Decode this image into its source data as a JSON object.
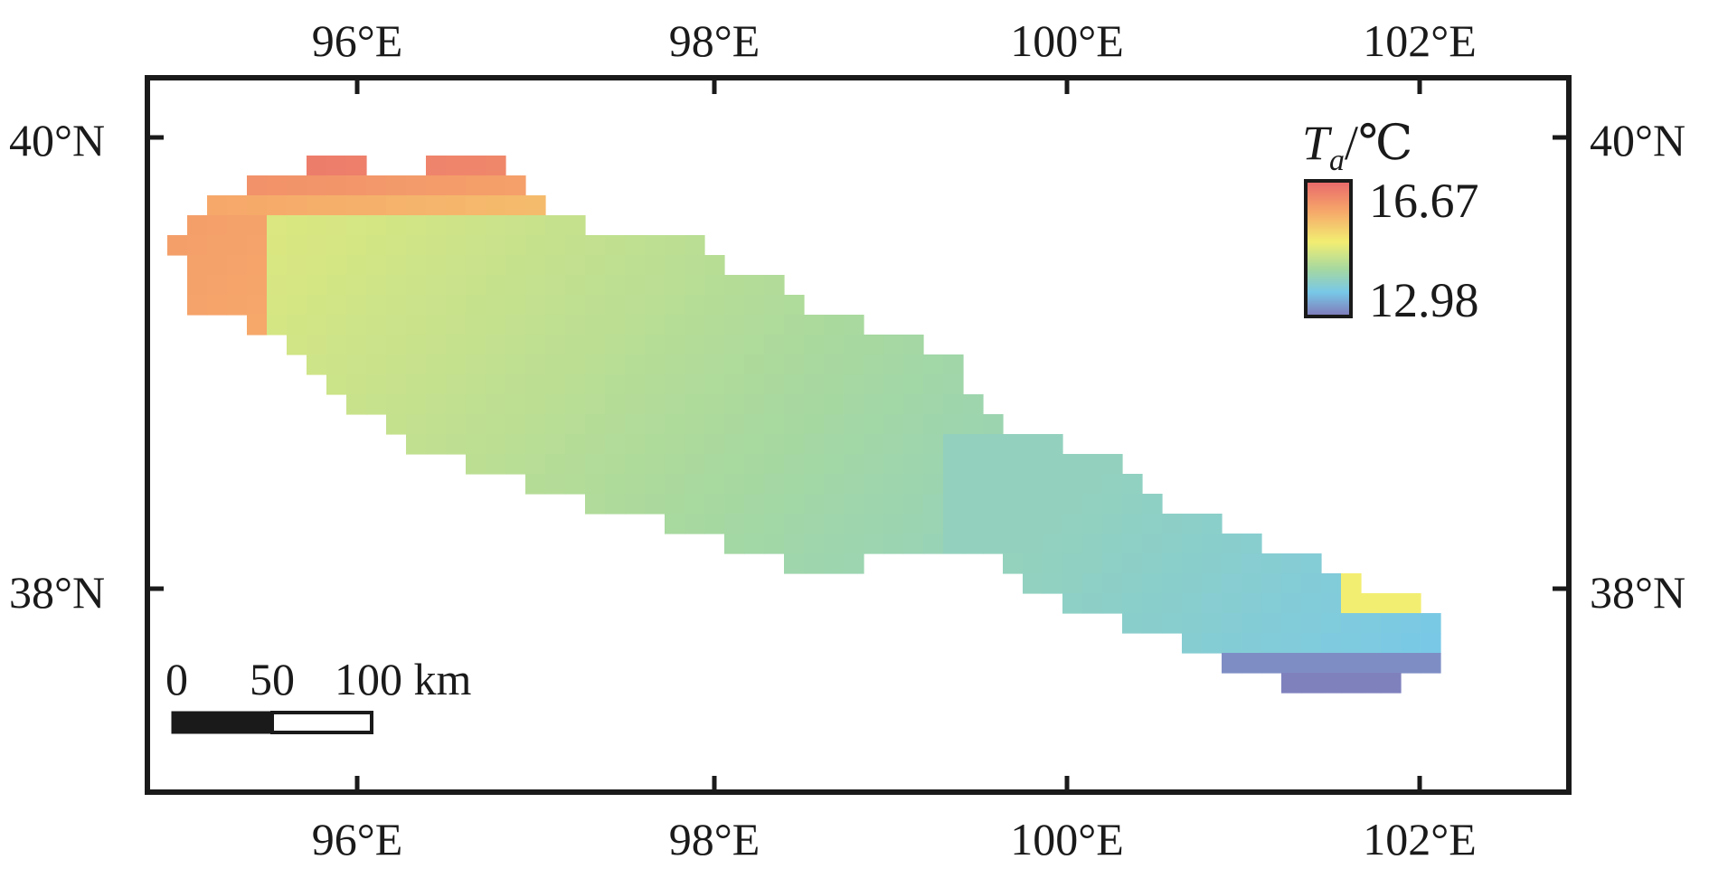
{
  "map": {
    "longitude_labels": [
      "96°E",
      "98°E",
      "100°E",
      "102°E"
    ],
    "latitude_labels": [
      "40°N",
      "38°N"
    ],
    "longitudes": [
      96,
      98,
      100,
      102
    ],
    "latitudes": [
      40,
      38
    ],
    "lon_range": [
      94.8,
      102.9
    ],
    "lat_range": [
      36.5,
      40.3
    ]
  },
  "legend": {
    "variable": "T",
    "subscript": "a",
    "unit": "/℃",
    "max": "16.67",
    "min": "12.98",
    "colors": [
      "#e8676b",
      "#f6a66a",
      "#f2ee72",
      "#a6d8a0",
      "#78c8e8",
      "#8078b8"
    ]
  },
  "scale_bar": {
    "labels": [
      "0",
      "50",
      "100 km"
    ]
  }
}
